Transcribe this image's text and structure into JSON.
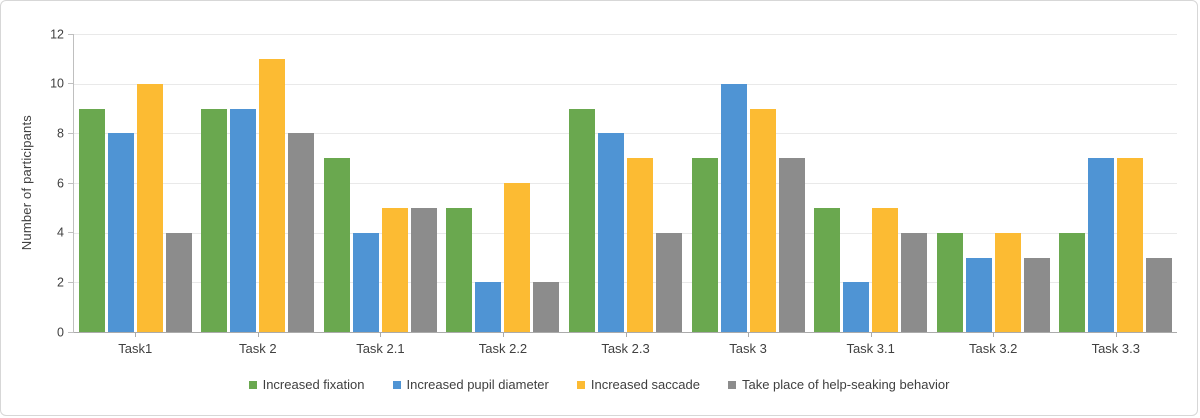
{
  "chart_data": {
    "type": "bar",
    "title": "",
    "xlabel": "",
    "ylabel": "Number of participants",
    "ylim": [
      0,
      12
    ],
    "yticks": [
      0,
      2,
      4,
      6,
      8,
      10,
      12
    ],
    "grid": true,
    "legend_position": "bottom",
    "categories": [
      "Task1",
      "Task 2",
      "Task 2.1",
      "Task 2.2",
      "Task 2.3",
      "Task 3",
      "Task 3.1",
      "Task 3.2",
      "Task 3.3"
    ],
    "series": [
      {
        "name": "Increased fixation",
        "color": "#6aa84f",
        "values": [
          9,
          9,
          7,
          5,
          9,
          7,
          5,
          4,
          4
        ]
      },
      {
        "name": "Increased pupil diameter",
        "color": "#4f94d4",
        "values": [
          8,
          9,
          4,
          2,
          8,
          10,
          2,
          3,
          7
        ]
      },
      {
        "name": "Increased saccade",
        "color": "#fcbb33",
        "values": [
          10,
          11,
          5,
          6,
          7,
          9,
          5,
          4,
          7
        ]
      },
      {
        "name": "Take place of help-seaking behavior",
        "color": "#8c8c8c",
        "values": [
          4,
          8,
          5,
          2,
          4,
          7,
          4,
          3,
          3
        ]
      }
    ],
    "colors": {
      "grid": "#e9e9e9",
      "y_axis_line": "#bfbfbf",
      "x_axis_line": "#ababab",
      "axis_text": "#404040",
      "legend_text": "#3f3f3f",
      "background": "#ffffff",
      "frame_border": "#d7d7d7"
    }
  }
}
